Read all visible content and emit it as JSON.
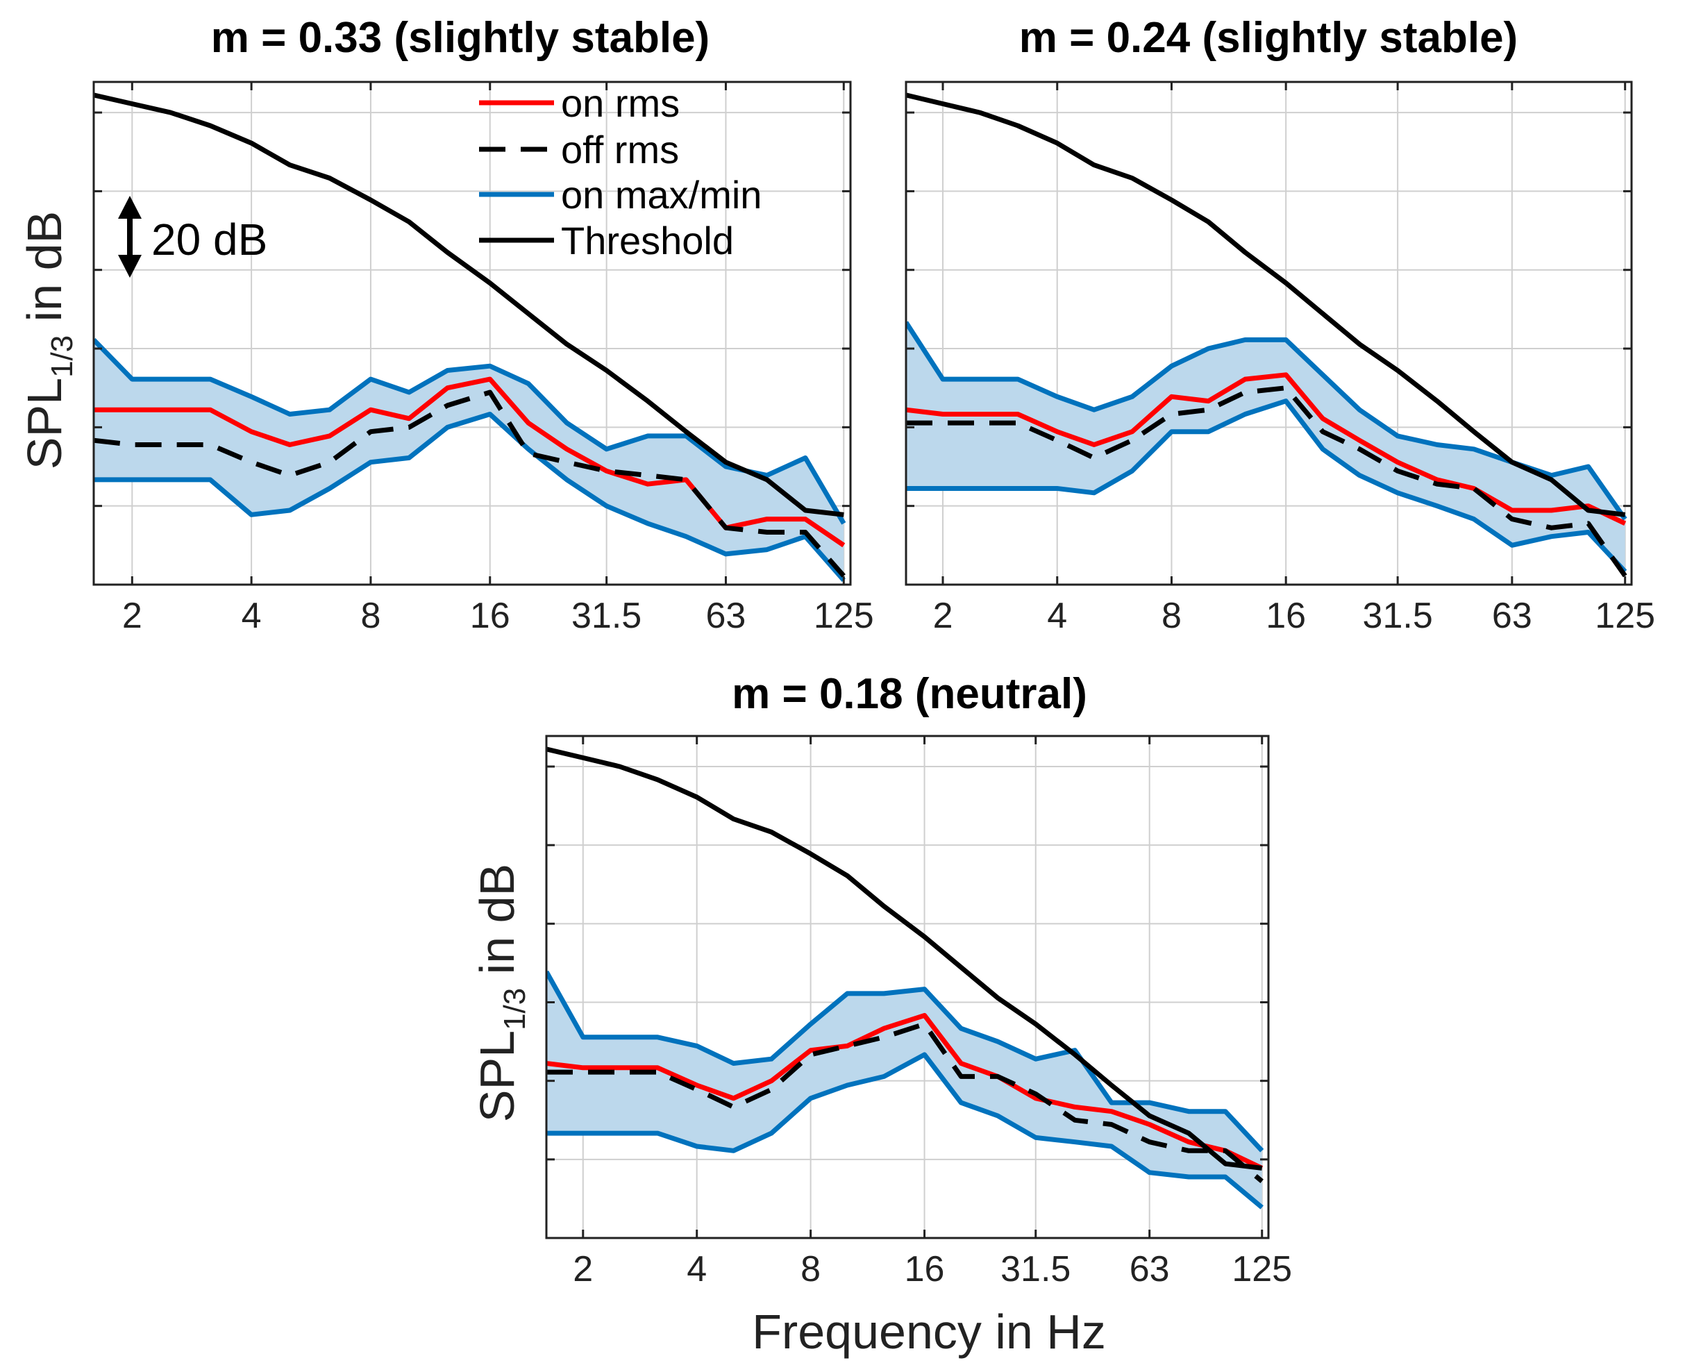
{
  "chart_data": [
    {
      "type": "line",
      "title": "m = 0.33 (slightly stable)",
      "xlabel": "",
      "ylabel": "SPL",
      "ylabel_sub": "1/3",
      "ylabel_suffix": " in dB",
      "x_scale": "log2",
      "xlim": [
        1.6,
        130
      ],
      "ylim": [
        -10,
        105
      ],
      "grid": true,
      "x": [
        1.6,
        2,
        2.5,
        3.15,
        4,
        5,
        6.3,
        8,
        10,
        12.5,
        16,
        20,
        25,
        31.5,
        40,
        50,
        63,
        80,
        100,
        125
      ],
      "x_ticks": [
        "2",
        "4",
        "8",
        "16",
        "31.5",
        "63",
        "125"
      ],
      "x_tick_values": [
        2,
        4,
        8,
        16,
        31.5,
        63,
        125
      ],
      "y_tick_values": [
        8,
        26,
        44,
        62,
        80,
        98
      ],
      "series": [
        {
          "name": "on max/min",
          "color": "#0072bd",
          "style": "band",
          "upper": [
            46,
            37,
            37,
            37,
            33,
            29,
            30,
            37,
            34,
            39,
            40,
            36,
            27,
            21,
            24,
            24,
            17,
            15,
            19,
            4
          ],
          "lower": [
            14,
            14,
            14,
            14,
            6,
            7,
            12,
            18,
            19,
            26,
            29,
            21,
            14,
            8,
            4,
            1,
            -3,
            -2,
            1,
            -9
          ]
        },
        {
          "name": "on rms",
          "color": "#ff0000",
          "style": "solid",
          "values": [
            30,
            30,
            30,
            30,
            25,
            22,
            24,
            30,
            28,
            35,
            37,
            27,
            21,
            16,
            13,
            14,
            3,
            5,
            5,
            -1
          ]
        },
        {
          "name": "off rms",
          "color": "#000000",
          "style": "dashed",
          "values": [
            23,
            22,
            22,
            22,
            18,
            15,
            18,
            25,
            26,
            31,
            34,
            20,
            18,
            16,
            15,
            14,
            3,
            2,
            2,
            -8
          ]
        },
        {
          "name": "Threshold",
          "color": "#000000",
          "style": "solid",
          "values": [
            102,
            100,
            98,
            95,
            91,
            86,
            83,
            78,
            73,
            66,
            59,
            52,
            45,
            39,
            32,
            25,
            18,
            14,
            7,
            6
          ]
        }
      ]
    },
    {
      "type": "line",
      "title": "m = 0.24 (slightly stable)",
      "xlabel": "",
      "ylabel": "",
      "x_scale": "log2",
      "xlim": [
        1.6,
        130
      ],
      "ylim": [
        -10,
        105
      ],
      "grid": true,
      "x": [
        1.6,
        2,
        2.5,
        3.15,
        4,
        5,
        6.3,
        8,
        10,
        12.5,
        16,
        20,
        25,
        31.5,
        40,
        50,
        63,
        80,
        100,
        125
      ],
      "x_ticks": [
        "2",
        "4",
        "8",
        "16",
        "31.5",
        "63",
        "125"
      ],
      "x_tick_values": [
        2,
        4,
        8,
        16,
        31.5,
        63,
        125
      ],
      "y_tick_values": [
        8,
        26,
        44,
        62,
        80,
        98
      ],
      "series": [
        {
          "name": "on max/min",
          "color": "#0072bd",
          "style": "band",
          "upper": [
            50,
            37,
            37,
            37,
            33,
            30,
            33,
            40,
            44,
            46,
            46,
            38,
            30,
            24,
            22,
            21,
            18,
            15,
            17,
            5
          ],
          "lower": [
            12,
            12,
            12,
            12,
            12,
            11,
            16,
            25,
            25,
            29,
            32,
            21,
            15,
            11,
            8,
            5,
            -1,
            1,
            2,
            -7
          ]
        },
        {
          "name": "on rms",
          "color": "#ff0000",
          "style": "solid",
          "values": [
            30,
            29,
            29,
            29,
            25,
            22,
            25,
            33,
            32,
            37,
            38,
            28,
            23,
            18,
            14,
            12,
            7,
            7,
            8,
            4
          ]
        },
        {
          "name": "off rms",
          "color": "#000000",
          "style": "dashed",
          "values": [
            27,
            27,
            27,
            27,
            23,
            19,
            23,
            29,
            30,
            34,
            35,
            25,
            21,
            16,
            13,
            12,
            5,
            3,
            4,
            -8
          ]
        },
        {
          "name": "Threshold",
          "color": "#000000",
          "style": "solid",
          "values": [
            102,
            100,
            98,
            95,
            91,
            86,
            83,
            78,
            73,
            66,
            59,
            52,
            45,
            39,
            32,
            25,
            18,
            14,
            7,
            6
          ]
        }
      ]
    },
    {
      "type": "line",
      "title": "m = 0.18 (neutral)",
      "xlabel": "Frequency in Hz",
      "ylabel": "SPL",
      "ylabel_sub": "1/3",
      "ylabel_suffix": " in dB",
      "x_scale": "log2",
      "xlim": [
        1.6,
        130
      ],
      "ylim": [
        -10,
        105
      ],
      "grid": true,
      "x": [
        1.6,
        2,
        2.5,
        3.15,
        4,
        5,
        6.3,
        8,
        10,
        12.5,
        16,
        20,
        25,
        31.5,
        40,
        50,
        63,
        80,
        100,
        125
      ],
      "x_ticks": [
        "2",
        "4",
        "8",
        "16",
        "31.5",
        "63",
        "125"
      ],
      "x_tick_values": [
        2,
        4,
        8,
        16,
        31.5,
        63,
        125
      ],
      "y_tick_values": [
        8,
        26,
        44,
        62,
        80,
        98
      ],
      "series": [
        {
          "name": "on max/min",
          "color": "#0072bd",
          "style": "band",
          "upper": [
            51,
            36,
            36,
            36,
            34,
            30,
            31,
            39,
            46,
            46,
            47,
            38,
            35,
            31,
            33,
            21,
            21,
            19,
            19,
            10
          ],
          "lower": [
            14,
            14,
            14,
            14,
            11,
            10,
            14,
            22,
            25,
            27,
            32,
            21,
            18,
            13,
            12,
            11,
            5,
            4,
            4,
            -3
          ]
        },
        {
          "name": "on rms",
          "color": "#ff0000",
          "style": "solid",
          "values": [
            30,
            29,
            29,
            29,
            25,
            22,
            26,
            33,
            34,
            38,
            41,
            30,
            27,
            22,
            20,
            19,
            16,
            12,
            10,
            6
          ]
        },
        {
          "name": "off rms",
          "color": "#000000",
          "style": "dashed",
          "values": [
            28,
            28,
            28,
            28,
            24,
            20,
            24,
            32,
            34,
            36,
            39,
            27,
            27,
            23,
            17,
            16,
            12,
            10,
            10,
            3
          ]
        },
        {
          "name": "Threshold",
          "color": "#000000",
          "style": "solid",
          "values": [
            102,
            100,
            98,
            95,
            91,
            86,
            83,
            78,
            73,
            66,
            59,
            52,
            45,
            39,
            32,
            25,
            18,
            14,
            7,
            6
          ]
        }
      ]
    }
  ],
  "legend": {
    "items": [
      {
        "label": "on rms",
        "color": "#ff0000",
        "style": "solid"
      },
      {
        "label": "off rms",
        "color": "#000000",
        "style": "dashed"
      },
      {
        "label": "on max/min",
        "color": "#0072bd",
        "style": "solid"
      },
      {
        "label": "Threshold",
        "color": "#000000",
        "style": "solid"
      }
    ]
  },
  "annotation": {
    "text": "20 dB"
  },
  "colors": {
    "band_fill": "#bcd8ec",
    "grid": "#cfcfcf",
    "axis": "#222222"
  }
}
